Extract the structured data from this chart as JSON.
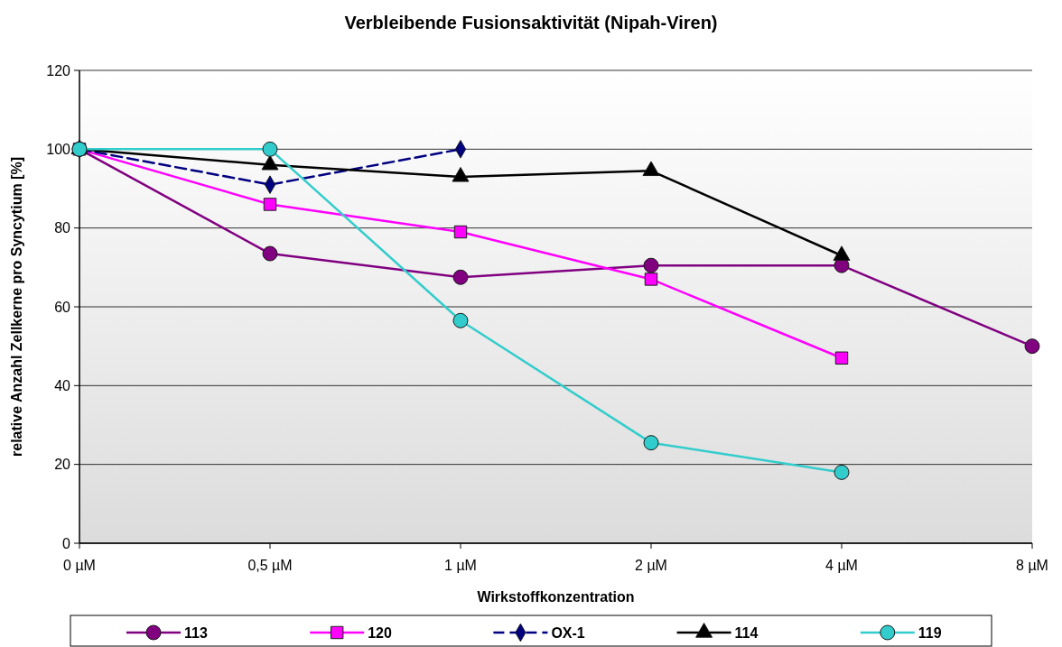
{
  "chart_data": {
    "type": "line",
    "title": "Verbleibende Fusionsaktivität (Nipah-Viren)",
    "xlabel": "Wirkstoffkonzentration",
    "ylabel": "relative Anzahl Zellkerne pro Syncytium [%]",
    "categories": [
      "0 µM",
      "0,5 µM",
      "1 µM",
      "2 µM",
      "4 µM",
      "8 µM"
    ],
    "ylim": [
      0,
      120
    ],
    "yticks": [
      0,
      20,
      40,
      60,
      80,
      100,
      120
    ],
    "grid": "y",
    "legend": "bottom",
    "series": [
      {
        "name": "113",
        "color": "#800080",
        "marker": "circle",
        "line_style": "solid",
        "values": [
          100,
          73.5,
          67.5,
          70.5,
          70.5,
          50
        ]
      },
      {
        "name": "120",
        "color": "#ff00ff",
        "marker": "square",
        "line_style": "solid",
        "values": [
          100,
          86,
          79,
          67,
          47,
          null
        ]
      },
      {
        "name": "OX-1",
        "color": "#000080",
        "marker": "diamond",
        "line_style": "dashed",
        "values": [
          100,
          91,
          100,
          null,
          null,
          null
        ]
      },
      {
        "name": "114",
        "color": "#000000",
        "marker": "triangle",
        "line_style": "solid",
        "values": [
          100,
          96,
          93,
          94.5,
          73,
          null
        ]
      },
      {
        "name": "119",
        "color": "#33cccc",
        "marker": "circle",
        "line_style": "solid",
        "values": [
          100,
          100,
          56.5,
          25.5,
          18,
          null
        ]
      }
    ]
  }
}
